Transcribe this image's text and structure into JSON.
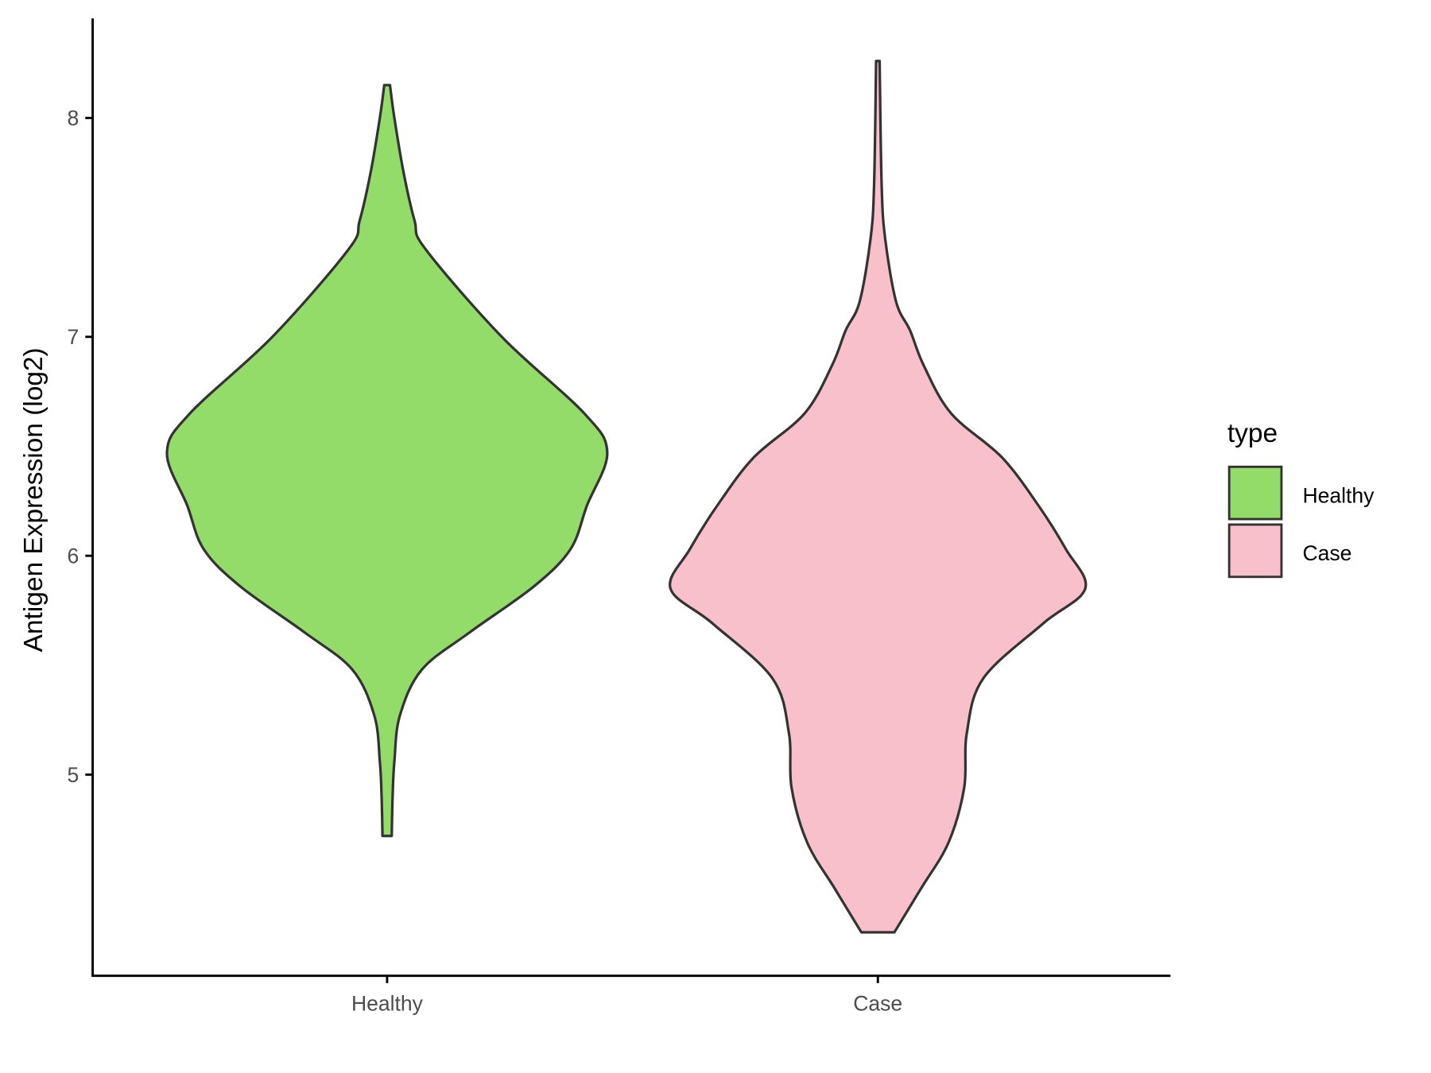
{
  "chart_data": {
    "type": "violin",
    "title": "",
    "xlabel": "",
    "ylabel": "Antigen Expression (log2)",
    "categories": [
      "Healthy",
      "Case"
    ],
    "yticks": [
      5,
      6,
      7,
      8
    ],
    "ylim": [
      4.1,
      8.5
    ],
    "grid": false,
    "legend": {
      "title": "type",
      "position": "right",
      "entries": [
        "Healthy",
        "Case"
      ]
    },
    "colors": {
      "Healthy": "#93dc6a",
      "Case": "#f7c0cb",
      "outline": "#333333"
    },
    "series": [
      {
        "name": "Healthy",
        "min": 4.72,
        "max": 8.15,
        "density": [
          [
            4.72,
            0.021
          ],
          [
            4.9,
            0.025
          ],
          [
            5.06,
            0.033
          ],
          [
            5.27,
            0.058
          ],
          [
            5.48,
            0.158
          ],
          [
            5.65,
            0.375
          ],
          [
            5.86,
            0.667
          ],
          [
            6.03,
            0.833
          ],
          [
            6.23,
            0.908
          ],
          [
            6.47,
            1.0
          ],
          [
            6.65,
            0.896
          ],
          [
            7.0,
            0.521
          ],
          [
            7.4,
            0.175
          ],
          [
            7.53,
            0.125
          ],
          [
            7.75,
            0.075
          ],
          [
            8.0,
            0.033
          ],
          [
            8.15,
            0.013
          ]
        ]
      },
      {
        "name": "Case",
        "min": 4.28,
        "max": 8.26,
        "density": [
          [
            4.28,
            0.075
          ],
          [
            4.48,
            0.196
          ],
          [
            4.69,
            0.321
          ],
          [
            4.94,
            0.392
          ],
          [
            5.19,
            0.404
          ],
          [
            5.44,
            0.479
          ],
          [
            5.69,
            0.75
          ],
          [
            5.85,
            0.942
          ],
          [
            6.03,
            0.854
          ],
          [
            6.23,
            0.729
          ],
          [
            6.45,
            0.563
          ],
          [
            6.65,
            0.333
          ],
          [
            6.87,
            0.208
          ],
          [
            7.03,
            0.146
          ],
          [
            7.16,
            0.083
          ],
          [
            7.45,
            0.033
          ],
          [
            7.7,
            0.017
          ],
          [
            8.26,
            0.008
          ]
        ]
      }
    ]
  }
}
